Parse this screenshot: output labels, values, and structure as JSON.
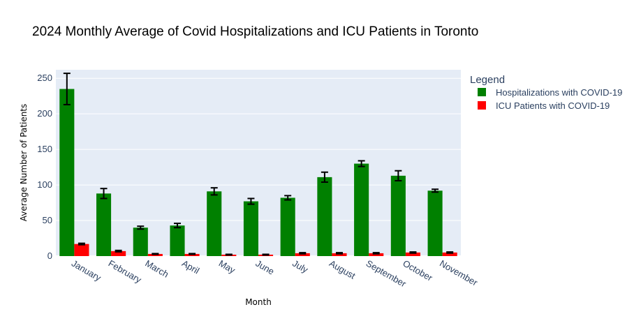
{
  "chart_data": {
    "type": "bar",
    "title": "2024 Monthly Average of Covid Hospitalizations and ICU Patients in Toronto",
    "xlabel": "Month",
    "ylabel": "Average Number of Patients",
    "categories": [
      "January",
      "February",
      "March",
      "April",
      "May",
      "June",
      "July",
      "August",
      "September",
      "October",
      "November"
    ],
    "ylim": [
      0,
      262
    ],
    "yticks": [
      0,
      50,
      100,
      150,
      200,
      250
    ],
    "grid": true,
    "legend_title": "Legend",
    "legend_position": "right",
    "series": [
      {
        "name": "Hospitalizations with COVID-19",
        "color": "#008000",
        "values": [
          235,
          88,
          40,
          43,
          91,
          77,
          82,
          111,
          130,
          113,
          92
        ],
        "error": [
          22,
          7,
          2,
          3,
          5,
          4,
          3,
          7,
          4,
          7,
          2
        ]
      },
      {
        "name": "ICU Patients with COVID-19",
        "color": "#ff0000",
        "values": [
          17,
          7,
          3,
          3,
          2,
          2,
          4,
          4,
          4,
          5,
          5
        ],
        "error": [
          1,
          1,
          0.5,
          0.5,
          0.5,
          0.5,
          0.8,
          0.8,
          0.8,
          0.8,
          0.8
        ]
      }
    ]
  }
}
